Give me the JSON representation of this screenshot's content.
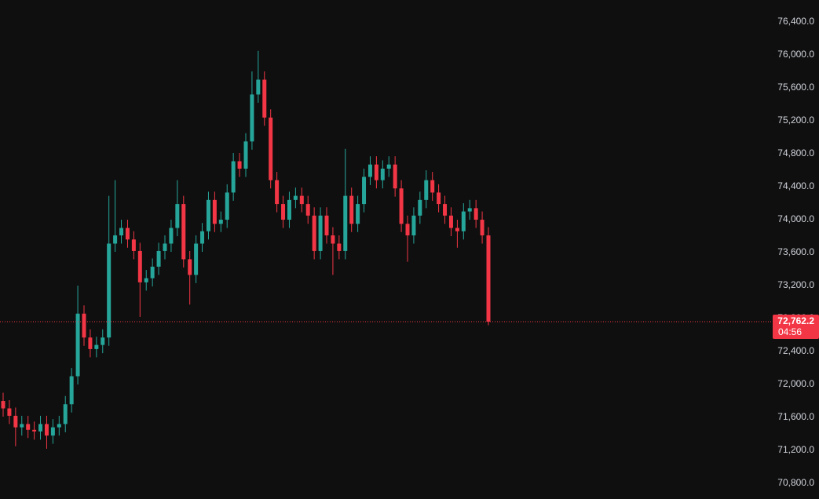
{
  "chart_data": {
    "type": "candlestick",
    "open": [
      71800,
      71710,
      71620,
      71480,
      71520,
      71450,
      71430,
      71520,
      71380,
      71480,
      71520,
      71760,
      72100,
      72860,
      72570,
      72430,
      72480,
      72570,
      73710,
      73810,
      73900,
      73760,
      73620,
      73240,
      73290,
      73430,
      73620,
      73710,
      73900,
      74190,
      73520,
      73330,
      73710,
      73860,
      74240,
      73950,
      74000,
      74330,
      74710,
      74620,
      74950,
      75520,
      75700,
      75240,
      74480,
      74190,
      74000,
      74240,
      74290,
      74190,
      74050,
      73620,
      74050,
      73810,
      73710,
      73620,
      74290,
      73950,
      74190,
      74520,
      74670,
      74480,
      74620,
      74670,
      74380,
      73950,
      73810,
      74050,
      74240,
      74480,
      74330,
      74190,
      74050,
      73900,
      73860,
      74100,
      74140,
      74000,
      73810
    ],
    "high": [
      71900,
      71810,
      71720,
      71620,
      71620,
      71550,
      71620,
      71620,
      71580,
      71620,
      71860,
      72200,
      73200,
      72960,
      72670,
      72580,
      72670,
      74290,
      74480,
      74000,
      74000,
      73860,
      73720,
      73390,
      73530,
      73720,
      73810,
      74000,
      74480,
      74290,
      73620,
      73810,
      73960,
      74340,
      74340,
      74100,
      74430,
      74810,
      74810,
      75050,
      75800,
      76050,
      75800,
      75340,
      74580,
      74290,
      74340,
      74390,
      74390,
      74290,
      74150,
      74150,
      74150,
      73910,
      73810,
      74860,
      74390,
      74290,
      74620,
      74770,
      74770,
      74720,
      74770,
      74770,
      74480,
      74050,
      74150,
      74340,
      74600,
      74580,
      74430,
      74290,
      74150,
      74000,
      74200,
      74240,
      74240,
      74100,
      73910
    ],
    "low": [
      71610,
      71520,
      71250,
      71380,
      71350,
      71330,
      71330,
      71220,
      71280,
      71380,
      71420,
      71660,
      72000,
      72470,
      72330,
      72330,
      72380,
      72470,
      73610,
      73710,
      73660,
      73520,
      72820,
      73140,
      73190,
      73330,
      73520,
      73610,
      73800,
      73420,
      72970,
      73230,
      73610,
      73760,
      73850,
      73850,
      73900,
      74230,
      74520,
      74520,
      74850,
      75420,
      75140,
      74380,
      74090,
      73900,
      73900,
      74140,
      74090,
      73950,
      73520,
      73520,
      73710,
      73330,
      73520,
      73520,
      73850,
      73850,
      74090,
      74420,
      74380,
      74380,
      74520,
      74280,
      73850,
      73490,
      73710,
      73950,
      74140,
      74230,
      74090,
      73950,
      73800,
      73660,
      73760,
      74000,
      73900,
      73710,
      72720
    ],
    "close": [
      71710,
      71620,
      71480,
      71520,
      71450,
      71430,
      71520,
      71380,
      71480,
      71520,
      71760,
      72100,
      72860,
      72570,
      72430,
      72480,
      72570,
      73710,
      73810,
      73900,
      73760,
      73620,
      73240,
      73290,
      73430,
      73620,
      73710,
      73900,
      74190,
      73520,
      73330,
      73710,
      73860,
      74240,
      73950,
      74000,
      74330,
      74710,
      74620,
      74950,
      75520,
      75700,
      75240,
      74480,
      74190,
      74000,
      74240,
      74290,
      74190,
      74050,
      73620,
      74050,
      73810,
      73710,
      73620,
      74290,
      73950,
      74190,
      74520,
      74670,
      74480,
      74620,
      74670,
      74380,
      73950,
      73810,
      74050,
      74240,
      74480,
      74330,
      74190,
      74050,
      73900,
      73860,
      74100,
      74140,
      74000,
      73810,
      72762.2
    ],
    "up_color": "#26a69a",
    "down_color": "#f23645",
    "ylim": [
      70610,
      76667
    ],
    "yticks": [
      {
        "value": 76400,
        "label": "76,400.0"
      },
      {
        "value": 76000,
        "label": "76,000.0"
      },
      {
        "value": 75600,
        "label": "75,600.0"
      },
      {
        "value": 75200,
        "label": "75,200.0"
      },
      {
        "value": 74800,
        "label": "74,800.0"
      },
      {
        "value": 74400,
        "label": "74,400.0"
      },
      {
        "value": 74000,
        "label": "74,000.0"
      },
      {
        "value": 73600,
        "label": "73,600.0"
      },
      {
        "value": 73200,
        "label": "73,200.0"
      },
      {
        "value": 72800,
        "label": "72,800.0"
      },
      {
        "value": 72400,
        "label": "72,400.0"
      },
      {
        "value": 72000,
        "label": "72,000.0"
      },
      {
        "value": 71600,
        "label": "71,600.0"
      },
      {
        "value": 71200,
        "label": "71,200.0"
      },
      {
        "value": 70800,
        "label": "70,800.0"
      }
    ],
    "last_price": {
      "value": 72762.2,
      "label": "72,762.2"
    },
    "countdown": "04:56"
  }
}
